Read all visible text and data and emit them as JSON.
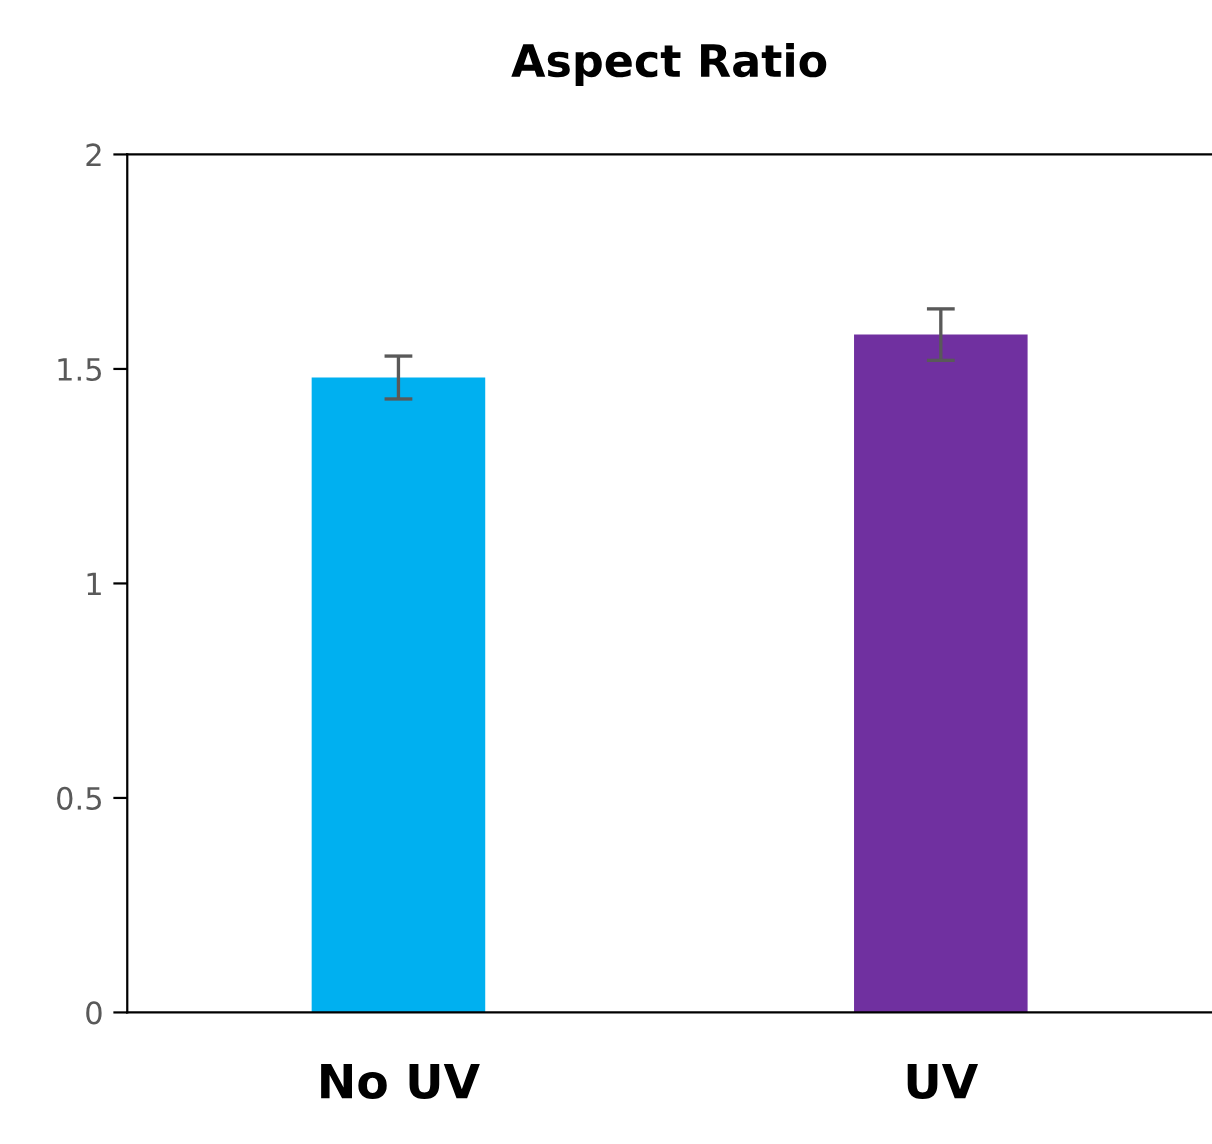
{
  "chart_data": {
    "type": "bar",
    "title": "Aspect Ratio",
    "categories": [
      "No UV",
      "UV"
    ],
    "values": [
      1.48,
      1.58
    ],
    "errors": [
      0.05,
      0.06
    ],
    "colors": [
      "#00b0f0",
      "#7030a0"
    ],
    "ylim": [
      0,
      2
    ],
    "yticks": [
      0,
      0.5,
      1,
      1.5,
      2
    ],
    "grid": false,
    "legend": false
  }
}
